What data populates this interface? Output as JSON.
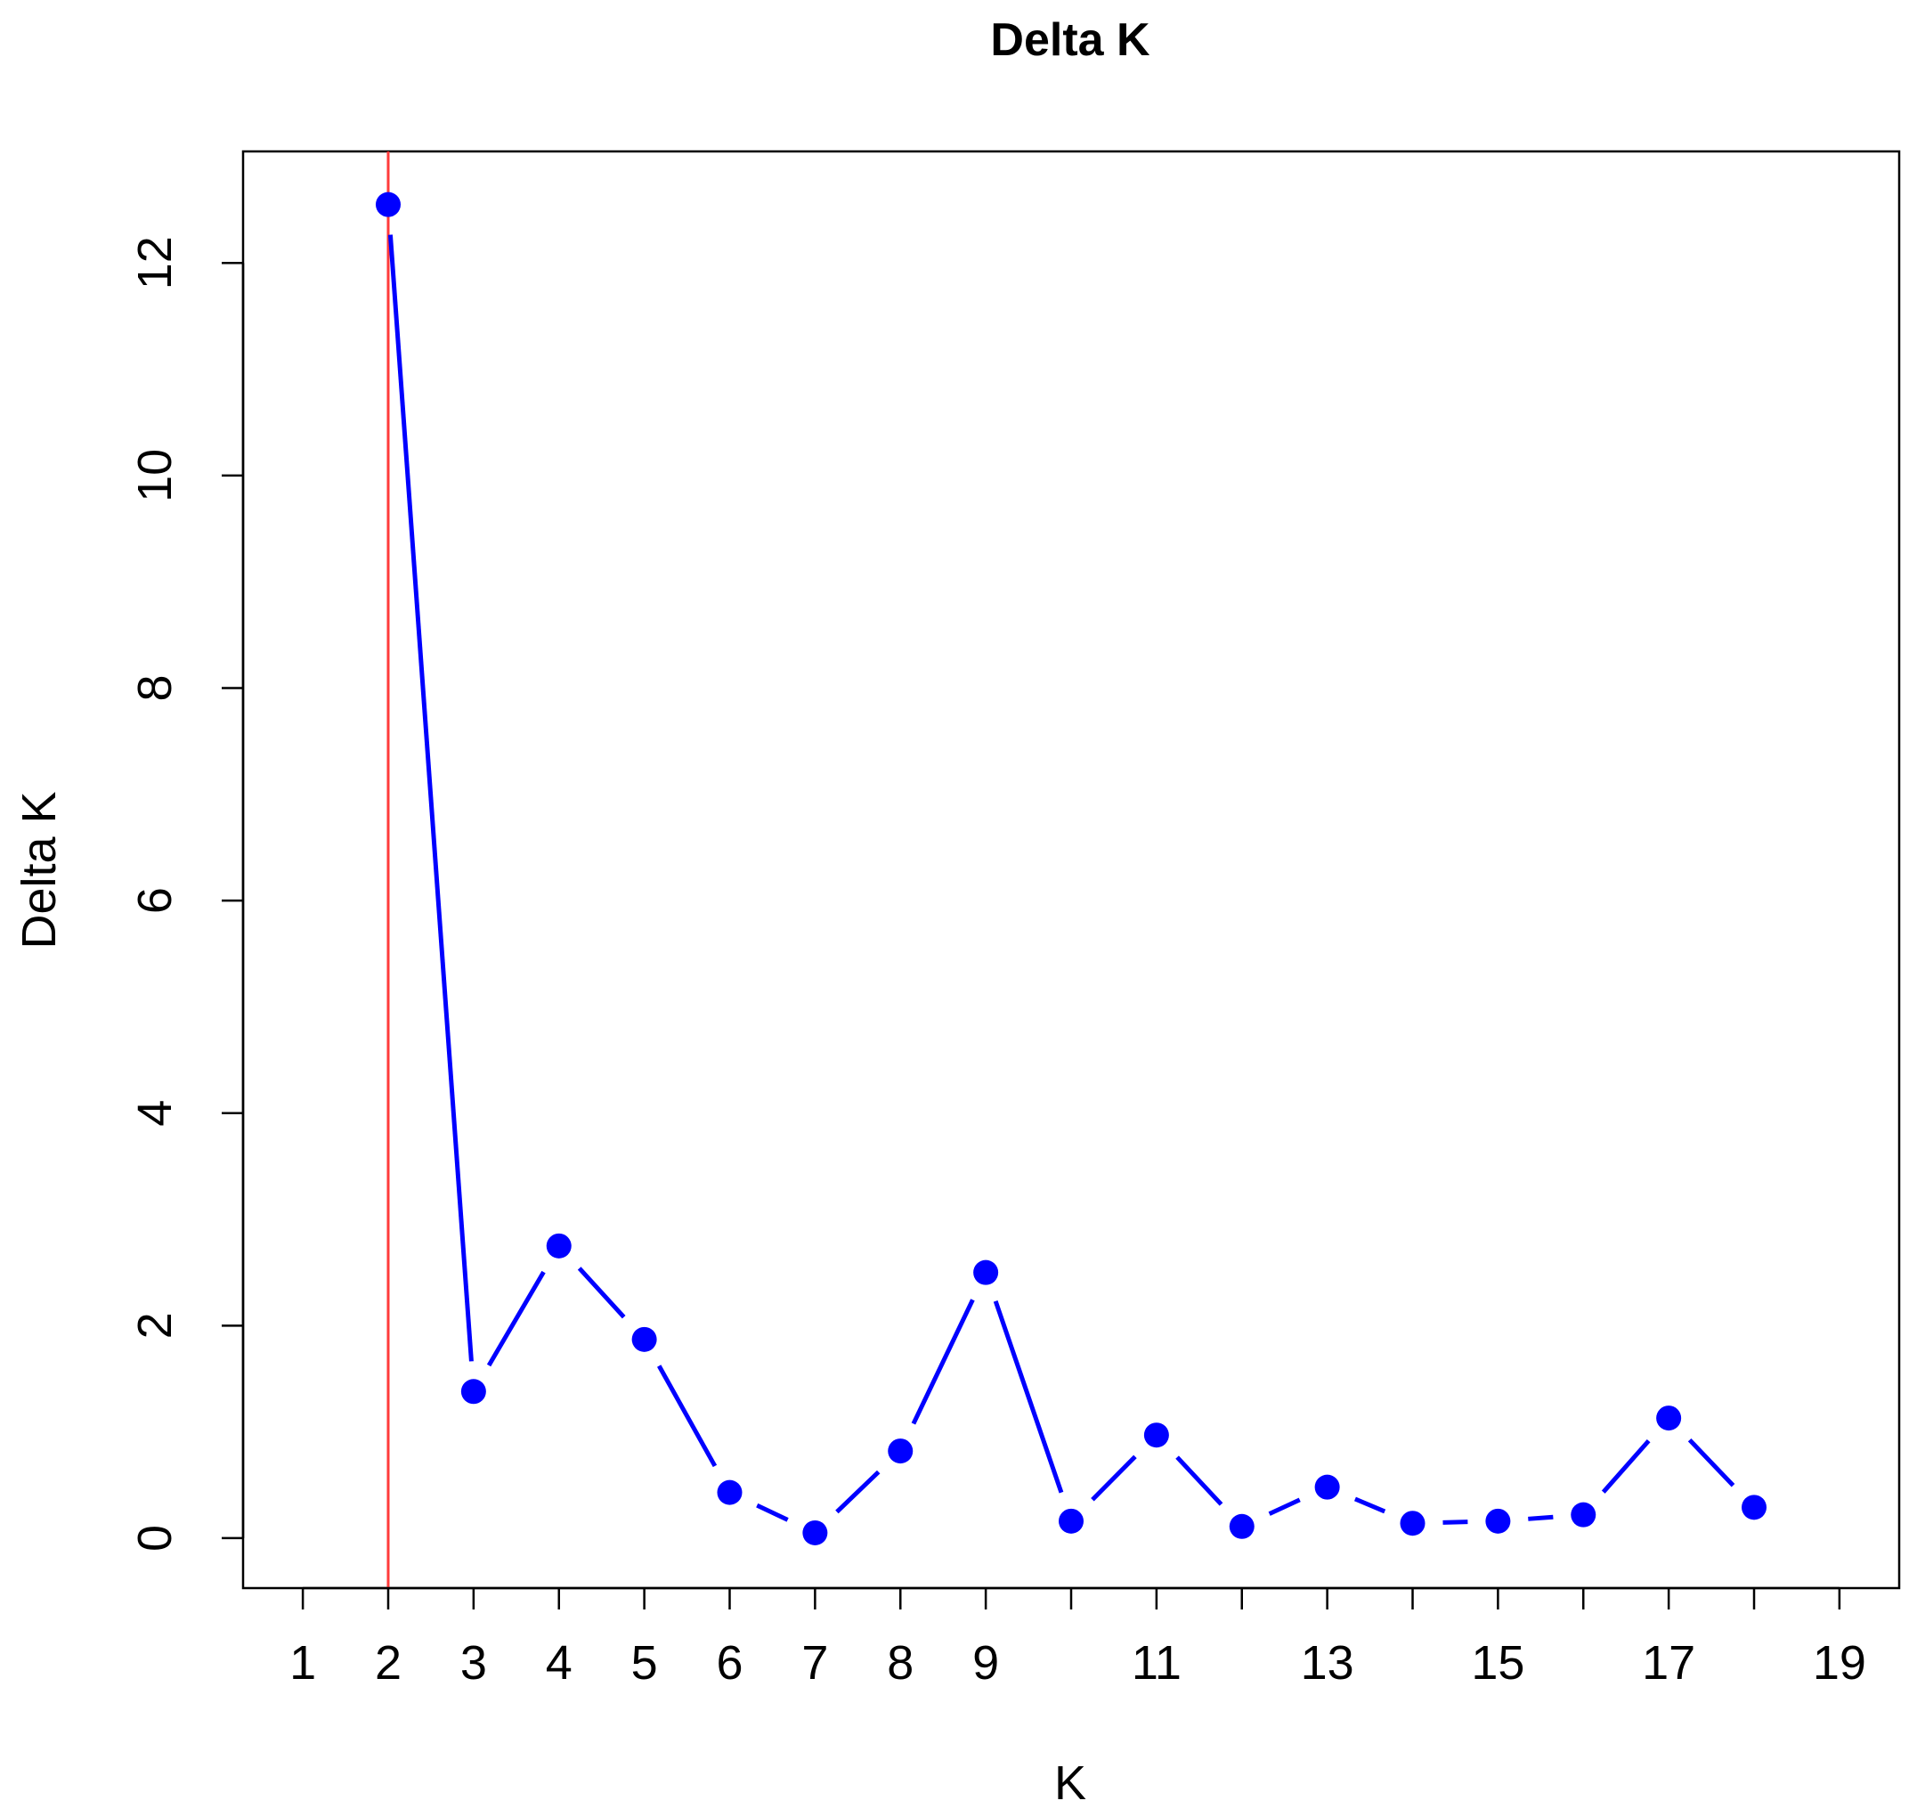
{
  "chart_data": {
    "type": "line",
    "title": "Delta K",
    "xlabel": "K",
    "ylabel": "Delta K",
    "x": [
      2,
      3,
      4,
      5,
      6,
      7,
      8,
      9,
      10,
      11,
      12,
      13,
      14,
      15,
      16,
      17,
      18
    ],
    "series": [
      {
        "values": [
          12.55,
          1.38,
          2.75,
          1.87,
          0.43,
          0.05,
          0.82,
          2.5,
          0.16,
          0.97,
          0.11,
          0.48,
          0.14,
          0.16,
          0.22,
          1.13,
          0.29
        ],
        "color": "#0000ff"
      }
    ],
    "xlim": [
      0.3,
      19.7
    ],
    "ylim": [
      -0.47,
      13.05
    ],
    "x_ticks": [
      1,
      2,
      3,
      4,
      5,
      6,
      7,
      8,
      9,
      10,
      11,
      12,
      13,
      14,
      15,
      16,
      17,
      18,
      19
    ],
    "x_tick_labels": [
      "1",
      "2",
      "3",
      "4",
      "5",
      "6",
      "7",
      "8",
      "9",
      "",
      "11",
      "",
      "13",
      "",
      "15",
      "",
      "17",
      "",
      "19"
    ],
    "y_ticks": [
      0,
      2,
      4,
      6,
      8,
      10,
      12
    ],
    "y_tick_labels": [
      "0",
      "2",
      "4",
      "6",
      "8",
      "10",
      "12"
    ],
    "reference_line": {
      "x": 2,
      "color": "#ff3b3b"
    },
    "grid": false,
    "legend": "none"
  }
}
